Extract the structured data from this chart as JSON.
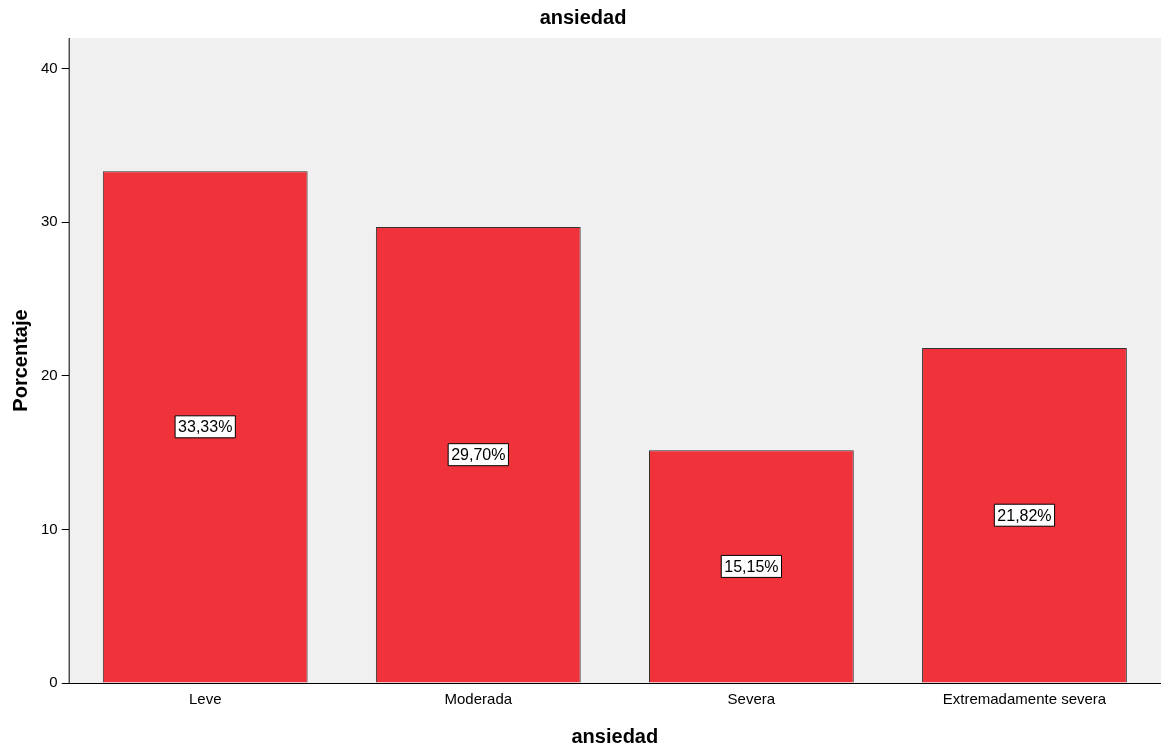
{
  "chart_data": {
    "type": "bar",
    "title": "ansiedad",
    "xlabel": "ansiedad",
    "ylabel": "Porcentaje",
    "categories": [
      "Leve",
      "Moderada",
      "Severa",
      "Extremadamente severa"
    ],
    "values": [
      33.33,
      29.7,
      15.15,
      21.82
    ],
    "value_labels": [
      "33,33%",
      "29,70%",
      "15,15%",
      "21,82%"
    ],
    "color": "#f0323a",
    "ylim": [
      0,
      42
    ],
    "yticks": [
      0,
      10,
      20,
      30,
      40
    ],
    "grid": false
  }
}
